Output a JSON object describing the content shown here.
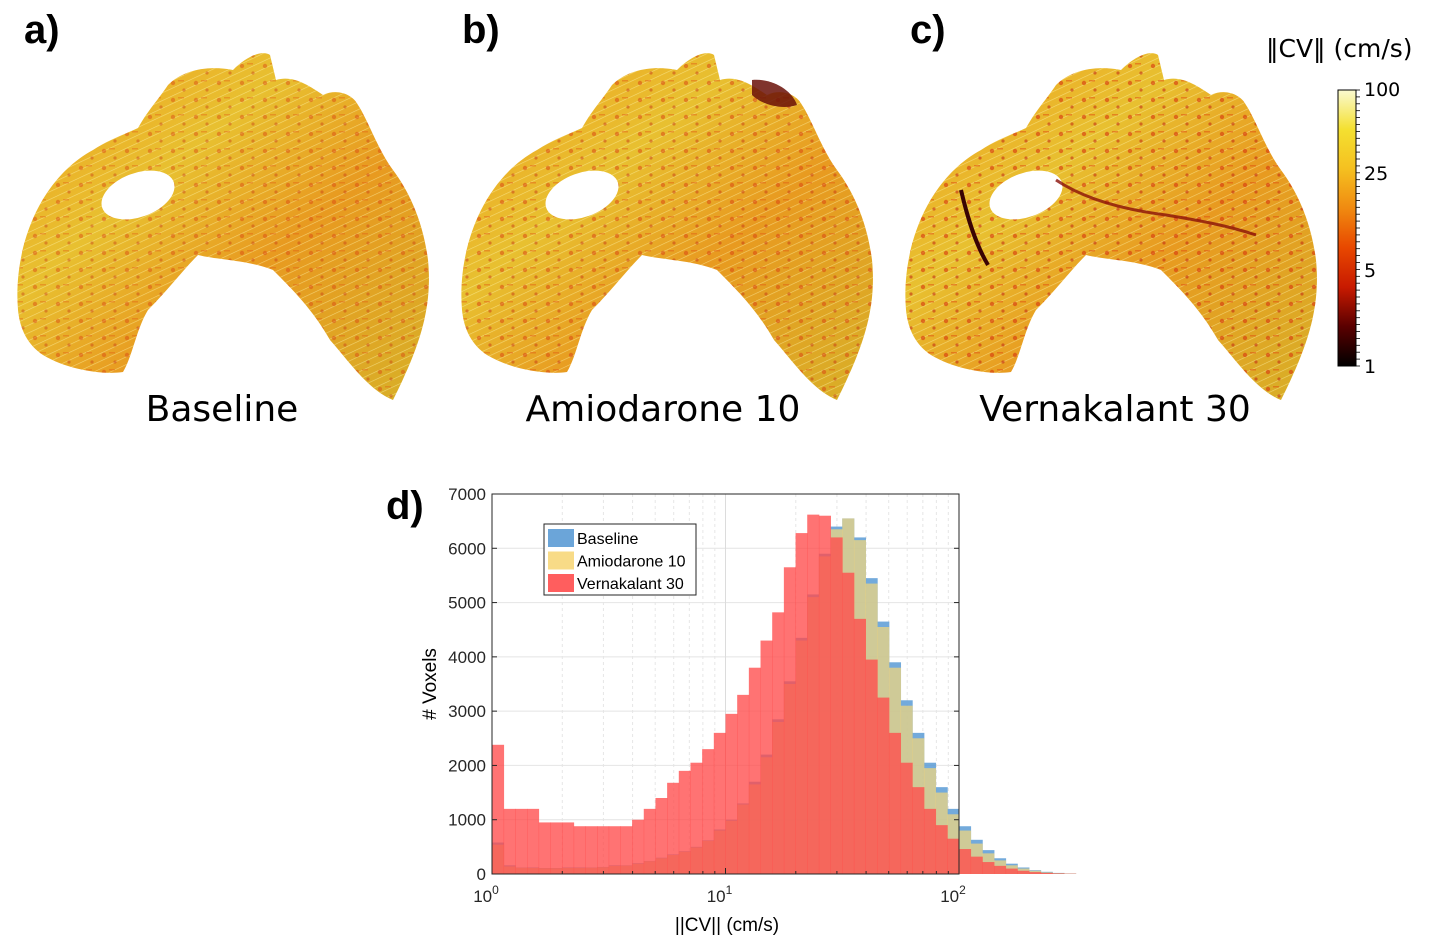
{
  "panels": [
    {
      "letter": "a)",
      "caption": "Baseline"
    },
    {
      "letter": "b)",
      "caption": "Amiodarone 10"
    },
    {
      "letter": "c)",
      "caption": "Vernakalant 30"
    }
  ],
  "colorbar": {
    "title": "‖CV‖ (cm/s)",
    "ticks": [
      "100",
      "25",
      "5",
      "1"
    ],
    "scale": "log",
    "colormap": [
      "#000000",
      "#5a0000",
      "#c81a00",
      "#e84800",
      "#f08a10",
      "#f5c020",
      "#f4e030",
      "#fafad0"
    ]
  },
  "histogram_panel": {
    "letter": "d)"
  },
  "chart_data": {
    "type": "histogram",
    "title": "",
    "xlabel": "||CV|| (cm/s)",
    "ylabel": "# Voxels",
    "xscale": "log",
    "xlim": [
      1,
      100
    ],
    "ylim": [
      0,
      7000
    ],
    "yticks": [
      0,
      1000,
      2000,
      3000,
      4000,
      5000,
      6000,
      7000
    ],
    "xticks": [
      {
        "base": "10",
        "exp": "0"
      },
      {
        "base": "10",
        "exp": "1"
      },
      {
        "base": "10",
        "exp": "2"
      }
    ],
    "grid": true,
    "legend_position": "top-left",
    "bins_per_decade": 20,
    "series": [
      {
        "name": "Baseline",
        "color": "#5b9bd5",
        "values": [
          580,
          160,
          120,
          120,
          110,
          110,
          120,
          120,
          120,
          130,
          160,
          160,
          200,
          240,
          300,
          360,
          420,
          500,
          620,
          820,
          1000,
          1300,
          1700,
          2200,
          2850,
          3550,
          4350,
          5150,
          5900,
          6400,
          6550,
          6200,
          5450,
          4650,
          3900,
          3200,
          2600,
          2050,
          1600,
          1200,
          880,
          630,
          440,
          290,
          190,
          120,
          70,
          40,
          20,
          10
        ]
      },
      {
        "name": "Amiodarone 10",
        "color": "#f7d77a",
        "values": [
          540,
          140,
          115,
          110,
          105,
          105,
          110,
          110,
          115,
          125,
          150,
          155,
          190,
          235,
          290,
          350,
          410,
          490,
          610,
          800,
          980,
          1280,
          1650,
          2150,
          2800,
          3500,
          4300,
          5100,
          5850,
          6350,
          6550,
          6150,
          5350,
          4550,
          3800,
          3100,
          2500,
          1950,
          1500,
          1100,
          800,
          560,
          380,
          250,
          160,
          100,
          60,
          30,
          15,
          8
        ]
      },
      {
        "name": "Vernakalant 30",
        "color": "#ff4c4c",
        "values": [
          2380,
          1200,
          1200,
          1200,
          950,
          950,
          950,
          880,
          880,
          880,
          880,
          880,
          1000,
          1200,
          1400,
          1680,
          1900,
          2050,
          2300,
          2600,
          2950,
          3300,
          3800,
          4300,
          4820,
          5650,
          6280,
          6620,
          6600,
          6200,
          5550,
          4700,
          3950,
          3250,
          2600,
          2050,
          1600,
          1200,
          900,
          650,
          460,
          320,
          220,
          150,
          100,
          60,
          35,
          20,
          10,
          5
        ]
      }
    ]
  }
}
